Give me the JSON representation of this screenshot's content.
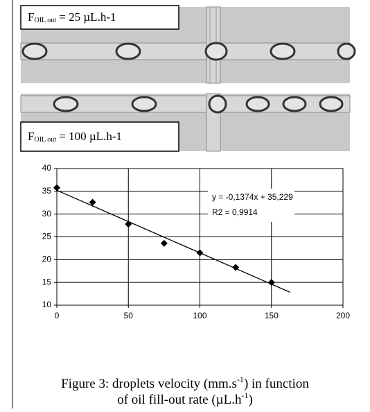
{
  "images": [
    {
      "label": {
        "main": "F",
        "sub": "OIL out",
        "rest": " = 25 µL.h-1"
      }
    },
    {
      "label": {
        "main": "F",
        "sub": "OIL out",
        "rest": " = 100 µL.h-1"
      }
    }
  ],
  "chart_data": {
    "type": "scatter",
    "x": [
      0,
      25,
      50,
      75,
      100,
      125,
      150
    ],
    "values": [
      35.8,
      32.6,
      27.8,
      23.6,
      21.5,
      18.3,
      15
    ],
    "color": "#000000",
    "xlim": [
      0,
      200
    ],
    "xticks": [
      0,
      50,
      100,
      150,
      200
    ],
    "ylim": [
      10,
      40
    ],
    "yticks": [
      10,
      15,
      20,
      25,
      30,
      35,
      40
    ],
    "grid": true,
    "trendline": {
      "slope": -0.1374,
      "intercept": 35.229,
      "x": [
        0,
        163
      ],
      "equation": "y = -0,1374x + 35,229",
      "r2": "R2 = 0,9914"
    }
  },
  "caption": {
    "line1": {
      "a": "Figure 3: droplets velocity (mm.s",
      "sup": "-1",
      "b": ") in function"
    },
    "line2": {
      "a": "of oil fill-out rate (µL.h",
      "sup": "-1",
      "b": ")"
    }
  }
}
